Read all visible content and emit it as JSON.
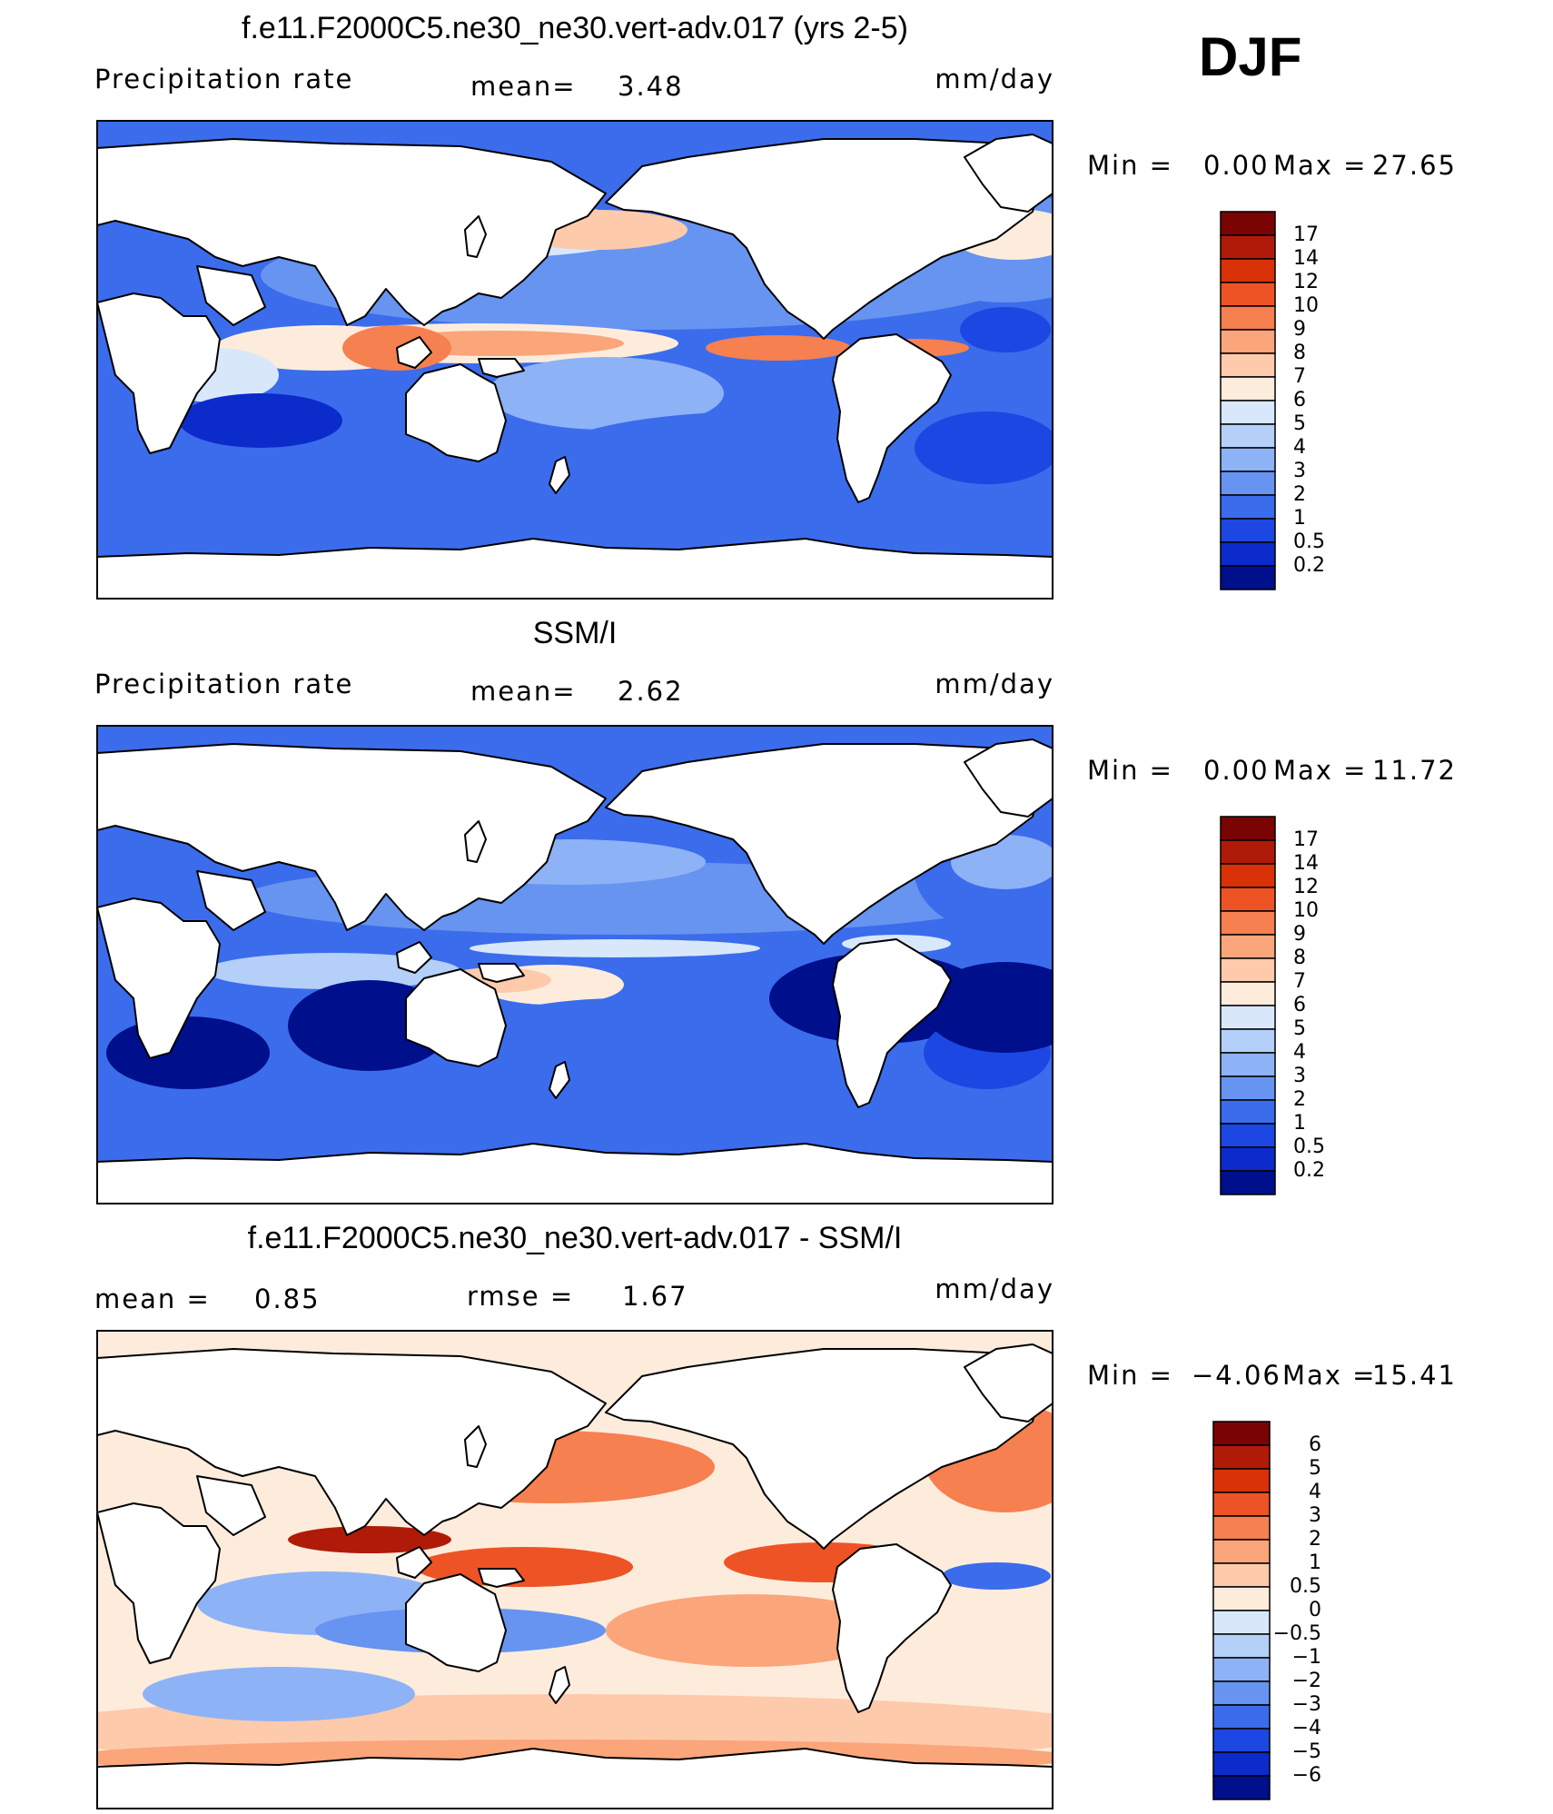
{
  "season": "DJF",
  "panels": [
    {
      "id": "model",
      "title": "f.e11.F2000C5.ne30_ne30.vert-adv.017 (yrs 2-5)",
      "variable": "Precipitation rate",
      "stat_left_label": "",
      "stat_left_value": "",
      "stat_mid_label": "mean=",
      "stat_mid_value": "3.48",
      "units": "mm/day",
      "min_label": "Min =",
      "min_value": "0.00",
      "max_label": "Max =",
      "max_value": "27.65",
      "colorbar_labels": [
        "17",
        "14",
        "12",
        "10",
        "9",
        "8",
        "7",
        "6",
        "5",
        "4",
        "3",
        "2",
        "1",
        "0.5",
        "0.2"
      ],
      "colors": [
        "#7a0403",
        "#b01a08",
        "#d93208",
        "#ee5325",
        "#f6804f",
        "#fba57b",
        "#fdcaab",
        "#fdecdc",
        "#d8e8fa",
        "#b4cff8",
        "#8eb2f6",
        "#6694f0",
        "#3b6cec",
        "#1c47e2",
        "#0c2bcb",
        "#000f8c"
      ]
    },
    {
      "id": "obs",
      "title": "SSM/I",
      "variable": "Precipitation rate",
      "stat_left_label": "",
      "stat_left_value": "",
      "stat_mid_label": "mean=",
      "stat_mid_value": "2.62",
      "units": "mm/day",
      "min_label": "Min =",
      "min_value": "0.00",
      "max_label": "Max =",
      "max_value": "11.72",
      "colorbar_labels": [
        "17",
        "14",
        "12",
        "10",
        "9",
        "8",
        "7",
        "6",
        "5",
        "4",
        "3",
        "2",
        "1",
        "0.5",
        "0.2"
      ],
      "colors": [
        "#7a0403",
        "#b01a08",
        "#d93208",
        "#ee5325",
        "#f6804f",
        "#fba57b",
        "#fdcaab",
        "#fdecdc",
        "#d8e8fa",
        "#b4cff8",
        "#8eb2f6",
        "#6694f0",
        "#3b6cec",
        "#1c47e2",
        "#0c2bcb",
        "#000f8c"
      ]
    },
    {
      "id": "diff",
      "title": "f.e11.F2000C5.ne30_ne30.vert-adv.017 - SSM/I",
      "variable": "",
      "stat_left_label": "mean =",
      "stat_left_value": "0.85",
      "stat_mid_label": "rmse =",
      "stat_mid_value": "1.67",
      "units": "mm/day",
      "min_label": "Min =",
      "min_value": "−4.06",
      "max_label": "Max =",
      "max_value": "15.41",
      "colorbar_labels": [
        "6",
        "5",
        "4",
        "3",
        "2",
        "1",
        "0.5",
        "0",
        "−0.5",
        "−1",
        "−2",
        "−3",
        "−4",
        "−5",
        "−6"
      ],
      "colors": [
        "#7a0403",
        "#b01a08",
        "#d93208",
        "#ee5325",
        "#f6804f",
        "#fba57b",
        "#fdcaab",
        "#fdecdc",
        "#d8e8fa",
        "#b4cff8",
        "#8eb2f6",
        "#6694f0",
        "#3b6cec",
        "#1c47e2",
        "#0c2bcb",
        "#000f8c"
      ]
    }
  ]
}
